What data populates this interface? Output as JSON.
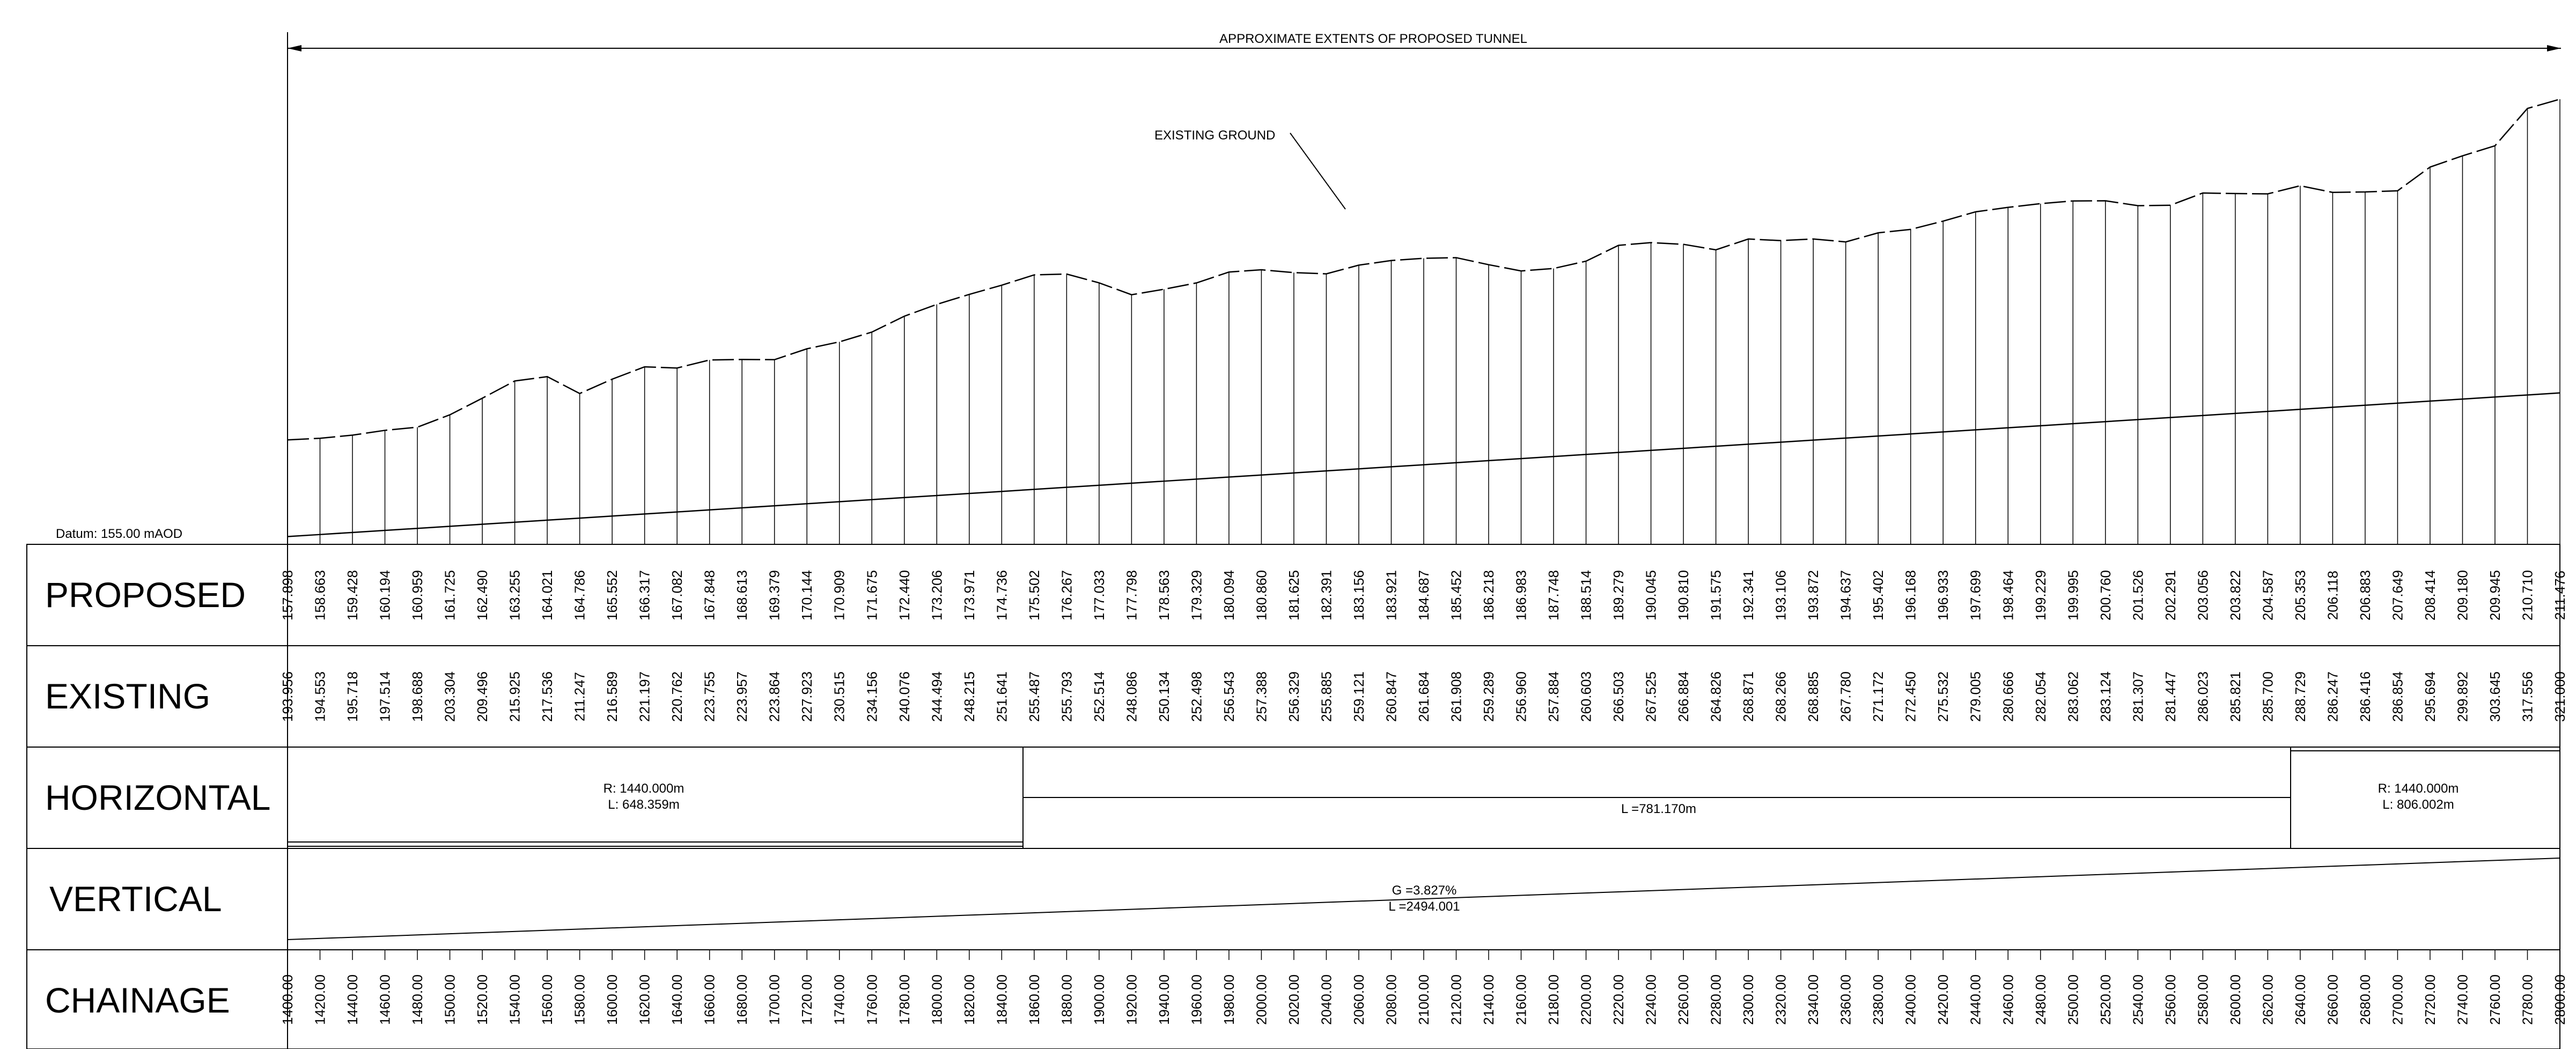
{
  "drawing": {
    "datum_label": "Datum: 155.00 mAOD",
    "tunnel_label": "APPROXIMATE EXTENTS OF PROPOSED TUNNEL",
    "ground_label": "EXISTING GROUND"
  },
  "rows": {
    "proposed": "PROPOSED",
    "existing": "EXISTING",
    "horizontal": "HORIZONTAL",
    "vertical": "VERTICAL",
    "chainage": "CHAINAGE"
  },
  "horizontal_segments": [
    {
      "r": "R: 1440.000m",
      "l": "L: 648.359m"
    },
    {
      "l": "L =781.170m"
    },
    {
      "r": "R: 1440.000m",
      "l": "L: 806.002m"
    }
  ],
  "vertical_segment": {
    "g": "G =3.827%",
    "l": "L =2494.001"
  },
  "chart_data": {
    "type": "line",
    "xlabel": "CHAINAGE",
    "ylabel": "",
    "chainage": [
      "1400.00",
      "1420.00",
      "1440.00",
      "1460.00",
      "1480.00",
      "1500.00",
      "1520.00",
      "1540.00",
      "1560.00",
      "1580.00",
      "1600.00",
      "1620.00",
      "1640.00",
      "1660.00",
      "1680.00",
      "1700.00",
      "1720.00",
      "1740.00",
      "1760.00",
      "1780.00",
      "1800.00",
      "1820.00",
      "1840.00",
      "1860.00",
      "1880.00",
      "1900.00",
      "1920.00",
      "1940.00",
      "1960.00",
      "1980.00",
      "2000.00",
      "2020.00",
      "2040.00",
      "2060.00",
      "2080.00",
      "2100.00",
      "2120.00",
      "2140.00",
      "2160.00",
      "2180.00",
      "2200.00",
      "2220.00",
      "2240.00",
      "2260.00",
      "2280.00",
      "2300.00",
      "2320.00",
      "2340.00",
      "2360.00",
      "2380.00",
      "2400.00",
      "2420.00",
      "2440.00",
      "2460.00",
      "2480.00",
      "2500.00",
      "2520.00",
      "2540.00",
      "2560.00",
      "2580.00",
      "2600.00",
      "2620.00",
      "2640.00",
      "2660.00",
      "2680.00",
      "2700.00",
      "2720.00",
      "2740.00",
      "2760.00",
      "2780.00",
      "2800.00"
    ],
    "series": [
      {
        "name": "PROPOSED",
        "values": [
          "157.898",
          "158.663",
          "159.428",
          "160.194",
          "160.959",
          "161.725",
          "162.490",
          "163.255",
          "164.021",
          "164.786",
          "165.552",
          "166.317",
          "167.082",
          "167.848",
          "168.613",
          "169.379",
          "170.144",
          "170.909",
          "171.675",
          "172.440",
          "173.206",
          "173.971",
          "174.736",
          "175.502",
          "176.267",
          "177.033",
          "177.798",
          "178.563",
          "179.329",
          "180.094",
          "180.860",
          "181.625",
          "182.391",
          "183.156",
          "183.921",
          "184.687",
          "185.452",
          "186.218",
          "186.983",
          "187.748",
          "188.514",
          "189.279",
          "190.045",
          "190.810",
          "191.575",
          "192.341",
          "193.106",
          "193.872",
          "194.637",
          "195.402",
          "196.168",
          "196.933",
          "197.699",
          "198.464",
          "199.229",
          "199.995",
          "200.760",
          "201.526",
          "202.291",
          "203.056",
          "203.822",
          "204.587",
          "205.353",
          "206.118",
          "206.883",
          "207.649",
          "208.414",
          "209.180",
          "209.945",
          "210.710",
          "211.476"
        ]
      },
      {
        "name": "EXISTING GROUND",
        "values": [
          "193.956",
          "194.553",
          "195.718",
          "197.514",
          "198.688",
          "203.304",
          "209.496",
          "215.925",
          "217.536",
          "211.247",
          "216.589",
          "221.197",
          "220.762",
          "223.755",
          "223.957",
          "223.864",
          "227.923",
          "230.515",
          "234.156",
          "240.076",
          "244.494",
          "248.215",
          "251.641",
          "255.487",
          "255.793",
          "252.514",
          "248.086",
          "250.134",
          "252.498",
          "256.543",
          "257.388",
          "256.329",
          "255.885",
          "259.121",
          "260.847",
          "261.684",
          "261.908",
          "259.289",
          "256.960",
          "257.884",
          "260.603",
          "266.503",
          "267.525",
          "266.884",
          "264.826",
          "268.871",
          "268.266",
          "268.885",
          "267.780",
          "271.172",
          "272.450",
          "275.532",
          "279.005",
          "280.666",
          "282.054",
          "283.062",
          "283.124",
          "281.307",
          "281.447",
          "286.023",
          "285.821",
          "285.700",
          "288.729",
          "286.247",
          "286.416",
          "286.854",
          "295.694",
          "299.892",
          "303.645",
          "317.556",
          "321.000"
        ]
      }
    ],
    "ylim": [
      155,
      325
    ]
  }
}
